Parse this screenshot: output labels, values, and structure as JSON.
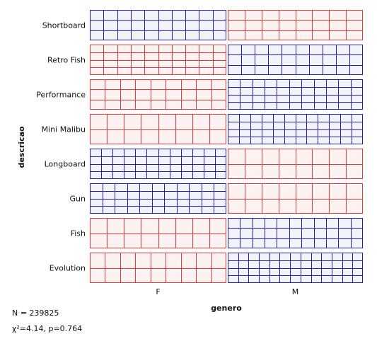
{
  "chart_data": {
    "type": "sieve",
    "xlabel": "genero",
    "ylabel": "descricao",
    "x_categories": [
      "F",
      "M"
    ],
    "y_categories": [
      "Shortboard",
      "Retro Fish",
      "Performance",
      "Mini Malibu",
      "Longboard",
      "Gun",
      "Fish",
      "Evolution"
    ],
    "cells": [
      {
        "descricao": "Shortboard",
        "genero": "F",
        "observed_vs_expected": "above",
        "color": "#1f1fbf"
      },
      {
        "descricao": "Shortboard",
        "genero": "M",
        "observed_vs_expected": "below",
        "color": "#e03a3a"
      },
      {
        "descricao": "Retro Fish",
        "genero": "F",
        "observed_vs_expected": "below",
        "color": "#e03a3a"
      },
      {
        "descricao": "Retro Fish",
        "genero": "M",
        "observed_vs_expected": "above",
        "color": "#1f1fbf"
      },
      {
        "descricao": "Performance",
        "genero": "F",
        "observed_vs_expected": "below",
        "color": "#e03a3a"
      },
      {
        "descricao": "Performance",
        "genero": "M",
        "observed_vs_expected": "above",
        "color": "#1f1fbf"
      },
      {
        "descricao": "Mini Malibu",
        "genero": "F",
        "observed_vs_expected": "below",
        "color": "#e03a3a"
      },
      {
        "descricao": "Mini Malibu",
        "genero": "M",
        "observed_vs_expected": "above",
        "color": "#1f1fbf"
      },
      {
        "descricao": "Longboard",
        "genero": "F",
        "observed_vs_expected": "above",
        "color": "#1f1fbf"
      },
      {
        "descricao": "Longboard",
        "genero": "M",
        "observed_vs_expected": "below",
        "color": "#e03a3a"
      },
      {
        "descricao": "Gun",
        "genero": "F",
        "observed_vs_expected": "above",
        "color": "#1f1fbf"
      },
      {
        "descricao": "Gun",
        "genero": "M",
        "observed_vs_expected": "below",
        "color": "#e03a3a"
      },
      {
        "descricao": "Fish",
        "genero": "F",
        "observed_vs_expected": "below",
        "color": "#e03a3a"
      },
      {
        "descricao": "Fish",
        "genero": "M",
        "observed_vs_expected": "above",
        "color": "#1f1fbf"
      },
      {
        "descricao": "Evolution",
        "genero": "F",
        "observed_vs_expected": "below",
        "color": "#e03a3a"
      },
      {
        "descricao": "Evolution",
        "genero": "M",
        "observed_vs_expected": "above",
        "color": "#1f1fbf"
      }
    ],
    "stats": {
      "n_text": "N = 239825",
      "chi_text": "χ²=4.14, p=0.764"
    },
    "colors": {
      "above": "#1f1fbf",
      "above_fill": "#f3f3fb",
      "below": "#e03a3a",
      "below_fill": "#fdf2f2"
    }
  }
}
